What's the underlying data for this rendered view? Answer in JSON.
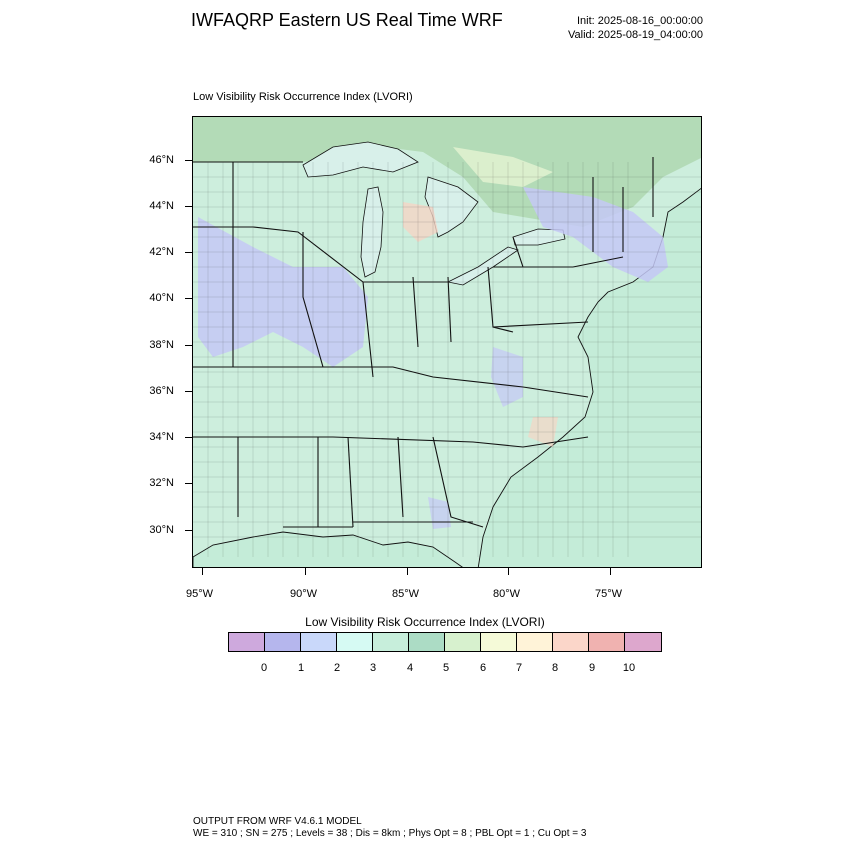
{
  "header": {
    "title": "IWFAQRP Eastern US Real Time WRF",
    "init": "Init: 2025-08-16_00:00:00",
    "valid": "Valid: 2025-08-19_04:00:00"
  },
  "map": {
    "subtitle": "Low Visibility Risk Occurrence Index   (LVORI)",
    "lat_labels": [
      "46°N",
      "44°N",
      "42°N",
      "40°N",
      "38°N",
      "36°N",
      "34°N",
      "32°N",
      "30°N"
    ],
    "lon_labels": [
      "95°W",
      "90°W",
      "85°W",
      "80°W",
      "75°W"
    ],
    "colors": {
      "land": "#cdeedd",
      "water": "#b9e6d3",
      "lake": "#d8f0ea",
      "ocean": "#c4ecd8",
      "lowrisk": "#c4c8f6",
      "midrisk": "#dff1cf",
      "highrisk": "#f5d5c5",
      "canada": "#b3dbb7",
      "border": "#111111"
    }
  },
  "colorbar": {
    "title": "Low Visibility Risk Occurrence Index  (LVORI)",
    "colors": [
      "#cea9dd",
      "#b5b6ed",
      "#c9d8fa",
      "#d6faf3",
      "#c7eedb",
      "#acdcc5",
      "#d7f1ce",
      "#f5fad8",
      "#fff3d8",
      "#fbd6c9",
      "#f0b2b0",
      "#dda7cd"
    ],
    "labels": [
      "0",
      "1",
      "2",
      "3",
      "4",
      "5",
      "6",
      "7",
      "8",
      "9",
      "10"
    ]
  },
  "footer": {
    "line1": "OUTPUT FROM WRF V4.6.1 MODEL",
    "line2": "WE = 310 ; SN = 275 ; Levels = 38 ; Dis = 8km ; Phys Opt = 8 ; PBL Opt = 1 ; Cu Opt = 3"
  }
}
